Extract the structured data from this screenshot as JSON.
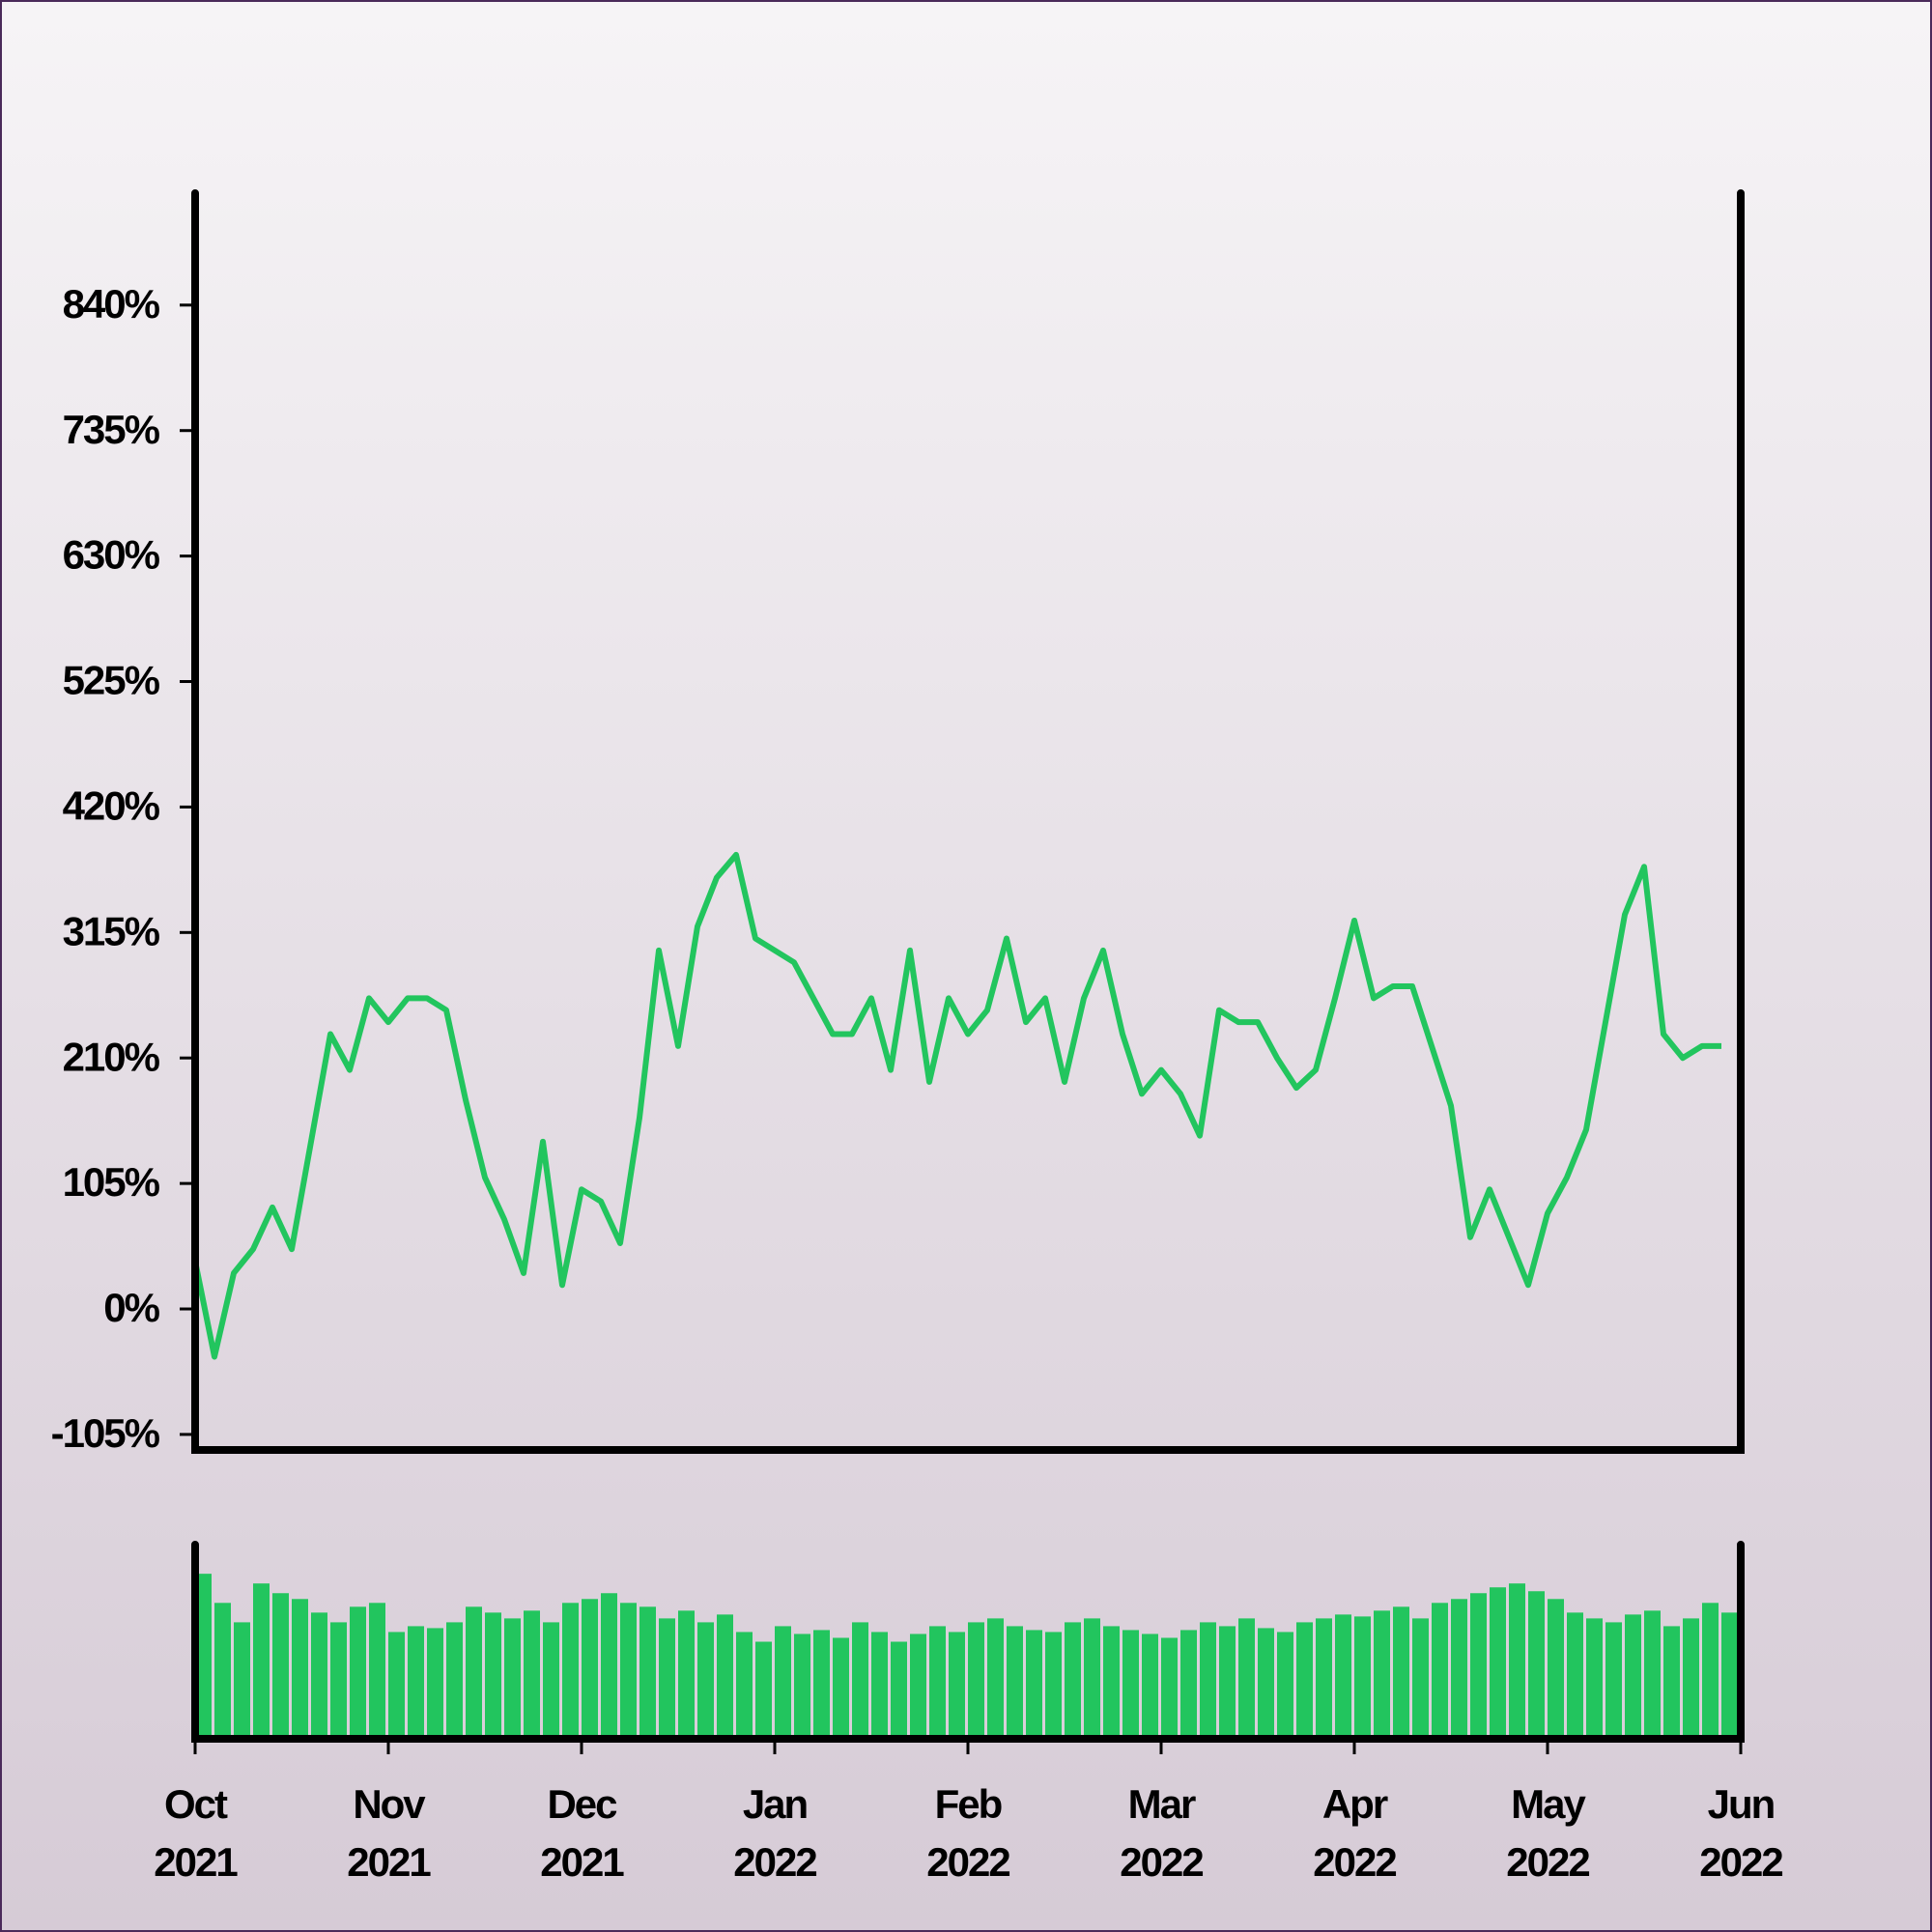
{
  "chart_data": [
    {
      "type": "line",
      "color": "#22c55e",
      "x": [
        0,
        0.1,
        0.2,
        0.3,
        0.4,
        0.5,
        0.6,
        0.7,
        0.8,
        0.9,
        1,
        1.1,
        1.2,
        1.3,
        1.4,
        1.5,
        1.6,
        1.7,
        1.8,
        1.9,
        2,
        2.1,
        2.2,
        2.3,
        2.4,
        2.5,
        2.6,
        2.7,
        2.8,
        2.9,
        3,
        3.1,
        3.2,
        3.3,
        3.4,
        3.5,
        3.6,
        3.7,
        3.8,
        3.9,
        4,
        4.1,
        4.2,
        4.3,
        4.4,
        4.5,
        4.6,
        4.7,
        4.8,
        4.9,
        5,
        5.1,
        5.2,
        5.3,
        5.4,
        5.5,
        5.6,
        5.7,
        5.8,
        5.9,
        6,
        6.1,
        6.2,
        6.3,
        6.4,
        6.5,
        6.6,
        6.7,
        6.8,
        6.9,
        7,
        7.1,
        7.2,
        7.3,
        7.4,
        7.5,
        7.6,
        7.7,
        7.8,
        7.9
      ],
      "values": [
        40,
        -40,
        30,
        50,
        85,
        50,
        140,
        230,
        200,
        260,
        240,
        260,
        260,
        250,
        175,
        110,
        75,
        30,
        140,
        20,
        100,
        90,
        55,
        160,
        300,
        220,
        320,
        361,
        380,
        310,
        300,
        290,
        260,
        230,
        230,
        260,
        200,
        300,
        190,
        260,
        230,
        250,
        310,
        240,
        260,
        190,
        260,
        300,
        230,
        180,
        200,
        180,
        145,
        250,
        240,
        240,
        210,
        185,
        200,
        260,
        325,
        260,
        270,
        270,
        220,
        170,
        60,
        100,
        60,
        20,
        80,
        110,
        150,
        240,
        330,
        370,
        230,
        210,
        220,
        220
      ],
      "xlim": [
        0,
        8
      ],
      "ylim": [
        -118,
        932
      ],
      "yticks": [
        {
          "value": -105,
          "label": "-105%"
        },
        {
          "value": 0,
          "label": "0%"
        },
        {
          "value": 105,
          "label": "105%"
        },
        {
          "value": 210,
          "label": "210%"
        },
        {
          "value": 315,
          "label": "315%"
        },
        {
          "value": 420,
          "label": "420%"
        },
        {
          "value": 525,
          "label": "525%"
        },
        {
          "value": 630,
          "label": "630%"
        },
        {
          "value": 735,
          "label": "735%"
        },
        {
          "value": 840,
          "label": "840%"
        }
      ]
    },
    {
      "type": "bar",
      "color": "#22c55e",
      "x": [
        0,
        0.1,
        0.2,
        0.3,
        0.4,
        0.5,
        0.6,
        0.7,
        0.8,
        0.9,
        1,
        1.1,
        1.2,
        1.3,
        1.4,
        1.5,
        1.6,
        1.7,
        1.8,
        1.9,
        2,
        2.1,
        2.2,
        2.3,
        2.4,
        2.5,
        2.6,
        2.7,
        2.8,
        2.9,
        3,
        3.1,
        3.2,
        3.3,
        3.4,
        3.5,
        3.6,
        3.7,
        3.8,
        3.9,
        4,
        4.1,
        4.2,
        4.3,
        4.4,
        4.5,
        4.6,
        4.7,
        4.8,
        4.9,
        5,
        5.1,
        5.2,
        5.3,
        5.4,
        5.5,
        5.6,
        5.7,
        5.8,
        5.9,
        6,
        6.1,
        6.2,
        6.3,
        6.4,
        6.5,
        6.6,
        6.7,
        6.8,
        6.9,
        7,
        7.1,
        7.2,
        7.3,
        7.4,
        7.5,
        7.6,
        7.7,
        7.8,
        7.9
      ],
      "values": [
        85,
        70,
        60,
        80,
        75,
        72,
        65,
        60,
        68,
        70,
        55,
        58,
        57,
        60,
        68,
        65,
        62,
        66,
        60,
        70,
        72,
        75,
        70,
        68,
        62,
        66,
        60,
        64,
        55,
        50,
        58,
        54,
        56,
        52,
        60,
        55,
        50,
        54,
        58,
        55,
        60,
        62,
        58,
        56,
        55,
        60,
        62,
        58,
        56,
        54,
        52,
        56,
        60,
        58,
        62,
        57,
        55,
        60,
        62,
        64,
        63,
        66,
        68,
        62,
        70,
        72,
        75,
        78,
        80,
        76,
        72,
        65,
        62,
        60,
        64,
        66,
        58,
        62,
        70,
        65
      ],
      "xlim": [
        0,
        8
      ],
      "ylim": [
        0,
        100
      ],
      "xticks": [
        {
          "value": 0,
          "label": "Oct 2021"
        },
        {
          "value": 1,
          "label": "Nov 2021"
        },
        {
          "value": 2,
          "label": "Dec 2021"
        },
        {
          "value": 3,
          "label": "Jan 2022"
        },
        {
          "value": 4,
          "label": "Feb 2022"
        },
        {
          "value": 5,
          "label": "Mar 2022"
        },
        {
          "value": 6,
          "label": "Apr 2022"
        },
        {
          "value": 7,
          "label": "May 2022"
        },
        {
          "value": 8,
          "label": "Jun 2022"
        }
      ]
    }
  ]
}
